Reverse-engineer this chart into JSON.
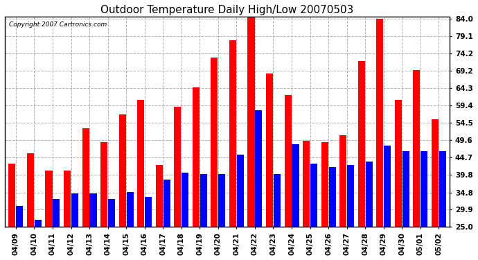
{
  "title": "Outdoor Temperature Daily High/Low 20070503",
  "copyright": "Copyright 2007 Cartronics.com",
  "dates": [
    "04/09",
    "04/10",
    "04/11",
    "04/12",
    "04/13",
    "04/14",
    "04/15",
    "04/16",
    "04/17",
    "04/18",
    "04/19",
    "04/20",
    "04/21",
    "04/22",
    "04/23",
    "04/24",
    "04/25",
    "04/26",
    "04/27",
    "04/28",
    "04/29",
    "04/30",
    "05/01",
    "05/02"
  ],
  "highs": [
    43.0,
    46.0,
    41.0,
    41.0,
    53.0,
    49.0,
    57.0,
    61.0,
    42.5,
    59.0,
    64.5,
    73.0,
    78.0,
    84.5,
    68.5,
    62.5,
    49.5,
    49.0,
    51.0,
    72.0,
    84.0,
    61.0,
    69.5,
    55.5
  ],
  "lows": [
    31.0,
    27.0,
    33.0,
    34.5,
    34.5,
    33.0,
    35.0,
    33.5,
    38.5,
    40.5,
    40.0,
    40.0,
    45.5,
    58.0,
    40.0,
    48.5,
    43.0,
    42.0,
    42.5,
    43.5,
    48.0,
    46.5,
    46.5,
    46.5
  ],
  "high_color": "#ff0000",
  "low_color": "#0000ff",
  "bg_color": "#ffffff",
  "plot_bg_color": "#ffffff",
  "grid_color": "#aaaaaa",
  "yticks": [
    25.0,
    29.9,
    34.8,
    39.8,
    44.7,
    49.6,
    54.5,
    59.4,
    64.3,
    69.2,
    74.2,
    79.1,
    84.0
  ],
  "ymin": 25.0,
  "ymax": 84.0,
  "title_fontsize": 11,
  "tick_fontsize": 7.5,
  "copyright_fontsize": 6.5
}
